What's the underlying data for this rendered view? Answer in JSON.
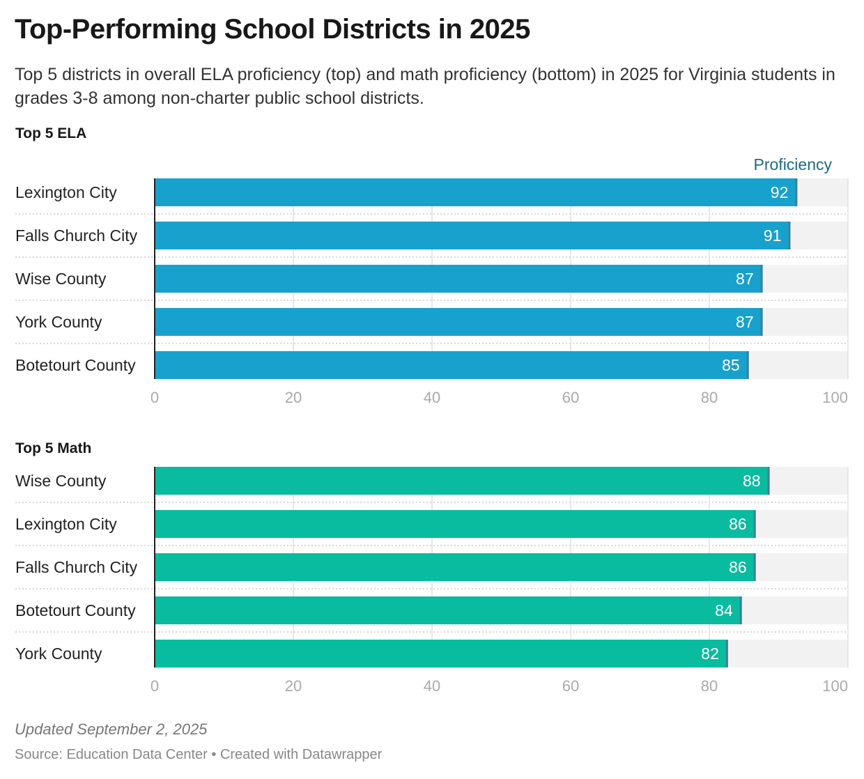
{
  "title": "Top-Performing School Districts in 2025",
  "subtitle": "Top 5 districts in overall ELA proficiency (top) and math proficiency (bottom) in 2025 for Virginia students in grades 3-8 among non-charter public school districts.",
  "notes": "Updated September 2, 2025",
  "source": "Source: Education Data Center • Created with Datawrapper",
  "chart_data": [
    {
      "type": "bar",
      "title": "Top 5 ELA",
      "column_label": "Proficiency",
      "categories": [
        "Lexington City",
        "Falls Church City",
        "Wise County",
        "York County",
        "Botetourt County"
      ],
      "values": [
        92,
        91,
        87,
        87,
        85
      ],
      "xlim": [
        0,
        100
      ],
      "ticks": [
        "0",
        "20",
        "40",
        "60",
        "80",
        "100"
      ],
      "color": "#18a1cd"
    },
    {
      "type": "bar",
      "title": "Top 5 Math",
      "categories": [
        "Wise County",
        "Lexington City",
        "Falls Church City",
        "Botetourt County",
        "York County"
      ],
      "values": [
        88,
        86,
        86,
        84,
        82
      ],
      "xlim": [
        0,
        100
      ],
      "ticks": [
        "0",
        "20",
        "40",
        "60",
        "80",
        "100"
      ],
      "color": "#09bb9f"
    }
  ]
}
